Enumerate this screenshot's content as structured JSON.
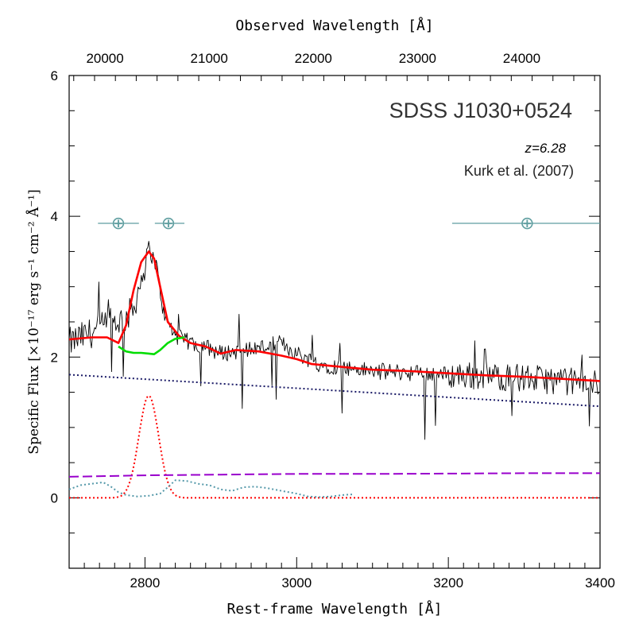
{
  "chart_data": {
    "type": "line",
    "title": "SDSS J1030+0524",
    "redshift_label": "z=6.28",
    "reference": "Kurk et al. (2007)",
    "xlabel": "Rest-frame Wavelength [Å]",
    "x2label": "Observed Wavelength [Å]",
    "ylabel": "Specific Flux [×10⁻¹⁷ erg s⁻¹ cm⁻² Å⁻¹]",
    "xlim": [
      2700,
      3400
    ],
    "ylim": [
      -1,
      6
    ],
    "redshift": 6.28,
    "x_ticks": [
      2800,
      3000,
      3200,
      3400
    ],
    "x_tick_labels": [
      "2800",
      "3000",
      "3200",
      "3400"
    ],
    "y_ticks": [
      0,
      2,
      4,
      6
    ],
    "y_tick_labels": [
      "0",
      "2",
      "4",
      "6"
    ],
    "x2_ticks": [
      20000,
      21000,
      22000,
      23000,
      24000
    ],
    "x2_tick_labels": [
      "20000",
      "21000",
      "22000",
      "23000",
      "24000"
    ],
    "telluric_symbol": "⊕",
    "telluric_bands": [
      {
        "x_range": [
          2738,
          2792
        ],
        "y": 3.9,
        "symbol_x": 2765
      },
      {
        "x_range": [
          2813,
          2852
        ],
        "y": 3.9,
        "symbol_x": 2831
      },
      {
        "x_range": [
          3205,
          3400
        ],
        "y": 3.9,
        "symbol_x": 3304
      }
    ],
    "series": [
      {
        "name": "observed spectrum",
        "color": "#000000",
        "style": "solid",
        "noisy": true,
        "x": [
          2700,
          2730,
          2760,
          2775,
          2785,
          2795,
          2805,
          2815,
          2825,
          2840,
          2860,
          2880,
          2900,
          2930,
          2960,
          2980,
          3000,
          3030,
          3060,
          3100,
          3150,
          3200,
          3250,
          3300,
          3350,
          3400
        ],
        "y": [
          2.2,
          2.35,
          2.5,
          2.55,
          2.7,
          3.1,
          3.55,
          3.3,
          2.6,
          2.3,
          2.2,
          2.15,
          2.05,
          2.1,
          2.15,
          2.2,
          2.05,
          1.9,
          1.85,
          1.8,
          1.78,
          1.75,
          1.73,
          1.7,
          1.66,
          1.62
        ]
      },
      {
        "name": "total model fit",
        "color": "#ff0000",
        "style": "solid",
        "x": [
          2700,
          2730,
          2750,
          2765,
          2775,
          2785,
          2795,
          2805,
          2812,
          2820,
          2830,
          2845,
          2860,
          2880,
          2900,
          2920,
          2950,
          2980,
          3000,
          3020,
          3050,
          3100,
          3150,
          3200,
          3250,
          3300,
          3350,
          3400
        ],
        "y": [
          2.25,
          2.28,
          2.28,
          2.2,
          2.45,
          2.95,
          3.35,
          3.5,
          3.4,
          3.0,
          2.5,
          2.3,
          2.2,
          2.15,
          2.05,
          2.1,
          2.08,
          2.02,
          1.97,
          1.9,
          1.87,
          1.82,
          1.8,
          1.77,
          1.74,
          1.72,
          1.69,
          1.66
        ]
      },
      {
        "name": "continuum plus Fe emission",
        "color": "#00dd00",
        "style": "solid",
        "x": [
          2765,
          2775,
          2785,
          2795,
          2805,
          2812,
          2820,
          2830,
          2840,
          2852
        ],
        "y": [
          2.15,
          2.08,
          2.06,
          2.06,
          2.05,
          2.04,
          2.1,
          2.2,
          2.26,
          2.28
        ]
      },
      {
        "name": "power-law continuum",
        "color": "#1a1a66",
        "style": "dotted",
        "x": [
          2700,
          3400
        ],
        "y": [
          1.75,
          1.3
        ]
      },
      {
        "name": "Mg II broad line",
        "color": "#ff0000",
        "style": "dotted",
        "gaussian": {
          "center": 2805,
          "sigma": 13,
          "amplitude": 1.45
        },
        "x_range": [
          2700,
          3400
        ]
      },
      {
        "name": "Balmer continuum",
        "color": "#9900cc",
        "style": "dashed",
        "x": [
          2700,
          2800,
          2900,
          3000,
          3100,
          3200,
          3300,
          3400
        ],
        "y": [
          0.3,
          0.32,
          0.33,
          0.34,
          0.34,
          0.345,
          0.35,
          0.35
        ]
      },
      {
        "name": "Fe II template",
        "color": "#5599aa",
        "style": "dotted",
        "x": [
          2700,
          2715,
          2730,
          2745,
          2755,
          2765,
          2775,
          2790,
          2805,
          2820,
          2830,
          2840,
          2855,
          2870,
          2885,
          2900,
          2915,
          2930,
          2945,
          2960,
          2980,
          3000,
          3015,
          3030,
          3045,
          3060,
          3075
        ],
        "y": [
          0.12,
          0.18,
          0.2,
          0.22,
          0.16,
          0.08,
          0.04,
          0.02,
          0.03,
          0.06,
          0.15,
          0.25,
          0.24,
          0.2,
          0.18,
          0.12,
          0.1,
          0.15,
          0.16,
          0.14,
          0.1,
          0.06,
          0.02,
          0.01,
          0.02,
          0.04,
          0.05
        ]
      }
    ]
  }
}
